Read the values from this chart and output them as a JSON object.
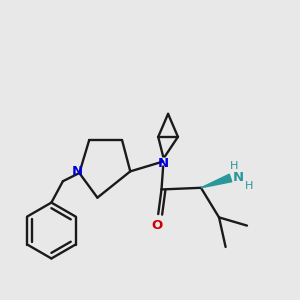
{
  "bg_color": "#e8e8e8",
  "bond_color": "#1a1a1a",
  "N_color": "#0000dd",
  "O_color": "#cc0000",
  "NH_color": "#2a9898",
  "lw": 1.7,
  "figsize": [
    3.0,
    3.0
  ],
  "dpi": 100,
  "xlim": [
    0,
    10
  ],
  "ylim": [
    0,
    10
  ]
}
